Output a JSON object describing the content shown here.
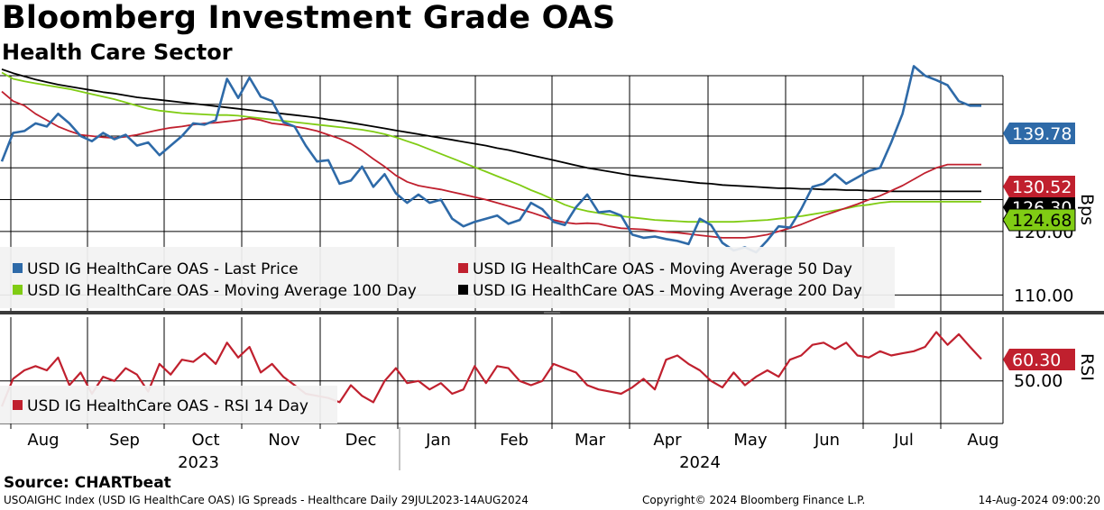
{
  "header": {
    "title": "Bloomberg Investment Grade OAS",
    "subtitle": "Health Care Sector"
  },
  "footer": {
    "source": "Source: CHARTbeat",
    "ticker_line": "USOAIGHC Index (USD IG HealthCare OAS) IG Spreads - Healthcare  Daily 29JUL2023-14AUG2024",
    "copyright": "Copyright© 2024 Bloomberg Finance L.P.",
    "timestamp": "14-Aug-2024 09:00:20"
  },
  "colors": {
    "last_price": "#2e6aa8",
    "ma50": "#c0202e",
    "ma100": "#80cc14",
    "ma200": "#000000",
    "rsi": "#c0202e",
    "grid": "#000000"
  },
  "chart_data": [
    {
      "type": "line",
      "panel": "price",
      "unit_label": "Bps",
      "ylim": [
        107.5,
        144.5
      ],
      "yticks": [
        "120.00",
        "110.00"
      ],
      "grid": true,
      "legend_position": "bottom-left",
      "x_axis": {
        "months": [
          "Aug",
          "Sep",
          "Oct",
          "Nov",
          "Dec",
          "Jan",
          "Feb",
          "Mar",
          "Apr",
          "May",
          "Jun",
          "Jul",
          "Aug"
        ],
        "years": [
          "2023",
          "2024"
        ]
      },
      "last_value_tags": [
        {
          "series": "last_price",
          "value": "139.78"
        },
        {
          "series": "ma50",
          "value": "130.52"
        },
        {
          "series": "ma200",
          "value": "126.30"
        },
        {
          "series": "ma100",
          "value": "124.68"
        }
      ],
      "x_index": [
        0,
        3,
        6,
        9,
        12,
        15,
        18,
        21,
        24,
        27,
        30,
        33,
        36,
        39,
        42,
        45,
        48,
        51,
        54,
        57,
        60,
        63,
        66,
        69,
        72,
        75,
        78,
        81,
        84,
        87,
        90,
        93,
        96,
        99,
        102,
        105,
        108,
        111,
        114,
        117,
        120,
        123,
        126,
        129,
        132,
        135,
        138,
        141,
        144,
        147,
        150,
        153,
        156,
        159,
        162,
        165,
        168,
        171,
        174,
        177,
        180,
        183,
        186,
        189,
        192,
        195,
        198,
        201,
        204,
        207,
        210,
        213,
        216,
        219,
        222,
        225,
        228,
        231,
        234,
        237,
        240,
        243,
        246,
        249,
        252,
        255,
        258,
        261
      ],
      "series": [
        {
          "name": "USD IG HealthCare OAS - Last Price",
          "key": "last_price",
          "values": [
            131.0,
            135.5,
            135.8,
            137.0,
            136.5,
            138.5,
            137.0,
            135.0,
            134.2,
            135.5,
            134.5,
            135.2,
            133.5,
            134.0,
            132.0,
            133.5,
            135.0,
            137.0,
            136.8,
            137.5,
            144.0,
            141.0,
            144.2,
            141.2,
            140.5,
            137.2,
            136.5,
            133.5,
            131.0,
            131.2,
            127.5,
            128.0,
            130.2,
            127.0,
            129.0,
            126.0,
            124.5,
            125.8,
            124.5,
            125.0,
            122.0,
            120.8,
            121.5,
            122.0,
            122.5,
            121.2,
            121.8,
            124.5,
            123.5,
            121.5,
            121.0,
            123.8,
            125.8,
            123.0,
            123.2,
            122.5,
            119.5,
            119.0,
            119.2,
            118.8,
            118.5,
            118.0,
            122.0,
            121.0,
            118.2,
            117.0,
            117.5,
            116.7,
            118.6,
            120.8,
            120.6,
            123.5,
            127.0,
            127.5,
            129.0,
            127.5,
            128.5,
            129.5,
            130.0,
            134.0,
            138.5,
            146.0,
            144.5,
            143.8,
            143.0,
            140.5,
            139.78,
            139.78
          ]
        },
        {
          "name": "USD IG HealthCare OAS - Moving Average 50 Day",
          "key": "ma50",
          "values": [
            142.0,
            140.5,
            139.8,
            138.5,
            137.5,
            136.5,
            135.8,
            135.2,
            135.0,
            134.8,
            134.7,
            134.9,
            135.2,
            135.6,
            136.0,
            136.3,
            136.5,
            136.8,
            137.0,
            137.1,
            137.3,
            137.5,
            137.8,
            137.5,
            137.0,
            136.8,
            136.5,
            136.2,
            135.8,
            135.2,
            134.6,
            133.8,
            132.7,
            131.4,
            130.2,
            128.8,
            127.8,
            127.2,
            126.9,
            126.6,
            126.2,
            125.8,
            125.4,
            125.0,
            124.5,
            124.0,
            123.5,
            123.0,
            122.4,
            121.8,
            121.4,
            121.2,
            121.3,
            121.2,
            120.8,
            120.5,
            120.4,
            120.3,
            120.1,
            119.9,
            119.8,
            119.6,
            119.4,
            119.2,
            119.0,
            119.0,
            119.0,
            119.2,
            119.5,
            120.0,
            120.5,
            121.1,
            121.8,
            122.5,
            123.1,
            123.7,
            124.3,
            125.0,
            125.6,
            126.4,
            127.2,
            128.2,
            129.2,
            130.0,
            130.52,
            130.52,
            130.52,
            130.52
          ]
        },
        {
          "name": "USD IG HealthCare OAS - Moving Average 100 Day",
          "key": "ma100",
          "values": [
            145.0,
            144.0,
            143.6,
            143.3,
            143.0,
            142.7,
            142.4,
            142.0,
            141.6,
            141.2,
            140.8,
            140.3,
            139.8,
            139.3,
            139.0,
            138.8,
            138.6,
            138.5,
            138.4,
            138.3,
            138.3,
            138.2,
            138.0,
            137.8,
            137.6,
            137.4,
            137.2,
            137.0,
            136.8,
            136.6,
            136.4,
            136.2,
            136.0,
            135.7,
            135.3,
            134.8,
            134.2,
            133.6,
            132.9,
            132.2,
            131.5,
            130.8,
            130.1,
            129.4,
            128.7,
            128.0,
            127.3,
            126.5,
            125.8,
            125.0,
            124.2,
            123.6,
            123.2,
            122.9,
            122.6,
            122.4,
            122.2,
            122.0,
            121.8,
            121.7,
            121.6,
            121.5,
            121.5,
            121.5,
            121.5,
            121.5,
            121.6,
            121.7,
            121.8,
            122.0,
            122.2,
            122.4,
            122.7,
            123.0,
            123.3,
            123.6,
            124.0,
            124.2,
            124.5,
            124.68,
            124.68,
            124.68,
            124.68,
            124.68,
            124.68,
            124.68,
            124.68,
            124.68
          ]
        },
        {
          "name": "USD IG HealthCare OAS - Moving Average 200 Day",
          "key": "ma200",
          "values": [
            145.5,
            144.9,
            144.4,
            143.9,
            143.5,
            143.1,
            142.8,
            142.5,
            142.2,
            141.9,
            141.7,
            141.4,
            141.1,
            140.9,
            140.7,
            140.5,
            140.3,
            140.1,
            139.9,
            139.7,
            139.5,
            139.3,
            139.1,
            138.9,
            138.7,
            138.5,
            138.3,
            138.1,
            137.9,
            137.6,
            137.4,
            137.1,
            136.8,
            136.5,
            136.2,
            135.9,
            135.6,
            135.3,
            135.0,
            134.7,
            134.4,
            134.1,
            133.8,
            133.5,
            133.1,
            132.8,
            132.4,
            132.0,
            131.6,
            131.2,
            130.8,
            130.4,
            130.0,
            129.7,
            129.4,
            129.1,
            128.8,
            128.6,
            128.4,
            128.2,
            128.0,
            127.8,
            127.6,
            127.5,
            127.3,
            127.2,
            127.1,
            127.0,
            126.9,
            126.8,
            126.8,
            126.7,
            126.7,
            126.6,
            126.6,
            126.5,
            126.5,
            126.4,
            126.4,
            126.3,
            126.3,
            126.3,
            126.3,
            126.3,
            126.3,
            126.3,
            126.3,
            126.3
          ]
        }
      ]
    },
    {
      "type": "line",
      "panel": "rsi",
      "unit_label": "RSI",
      "ylim": [
        30,
        80
      ],
      "yticks": [
        "50.00"
      ],
      "grid": true,
      "legend_position": "bottom-left",
      "last_value_tags": [
        {
          "series": "rsi",
          "value": "60.30"
        }
      ],
      "x_index": [
        0,
        3,
        6,
        9,
        12,
        15,
        18,
        21,
        24,
        27,
        30,
        33,
        36,
        39,
        42,
        45,
        48,
        51,
        54,
        57,
        60,
        63,
        66,
        69,
        72,
        75,
        78,
        81,
        84,
        87,
        90,
        93,
        96,
        99,
        102,
        105,
        108,
        111,
        114,
        117,
        120,
        123,
        126,
        129,
        132,
        135,
        138,
        141,
        144,
        147,
        150,
        153,
        156,
        159,
        162,
        165,
        168,
        171,
        174,
        177,
        180,
        183,
        186,
        189,
        192,
        195,
        198,
        201,
        204,
        207,
        210,
        213,
        216,
        219,
        222,
        225,
        228,
        231,
        234,
        237,
        240,
        243,
        246,
        249,
        252,
        255,
        258,
        261
      ],
      "series": [
        {
          "name": "USD IG HealthCare OAS - RSI 14 Day",
          "key": "rsi",
          "values": [
            38.0,
            51.0,
            55.0,
            57.0,
            55.0,
            61.0,
            48.0,
            54.0,
            44.0,
            52.0,
            50.0,
            56.0,
            53.0,
            45.0,
            58.0,
            53.0,
            60.0,
            59.0,
            63.0,
            58.0,
            68.0,
            61.0,
            66.0,
            54.0,
            58.0,
            52.0,
            48.0,
            44.0,
            43.0,
            42.0,
            40.0,
            48.0,
            43.0,
            40.0,
            50.0,
            56.0,
            49.0,
            50.0,
            46.0,
            49.0,
            44.0,
            46.0,
            57.0,
            49.0,
            57.0,
            56.0,
            50.0,
            48.0,
            50.0,
            58.0,
            56.0,
            54.0,
            48.0,
            46.0,
            45.0,
            44.0,
            47.0,
            51.0,
            46.0,
            60.0,
            62.0,
            58.0,
            55.0,
            50.0,
            47.0,
            54.0,
            48.0,
            52.0,
            55.0,
            52.0,
            60.0,
            62.0,
            67.0,
            68.0,
            65.0,
            68.0,
            62.0,
            61.0,
            64.0,
            62.0,
            63.0,
            64.0,
            66.0,
            73.0,
            67.0,
            72.0,
            66.0,
            60.3
          ]
        }
      ]
    }
  ]
}
